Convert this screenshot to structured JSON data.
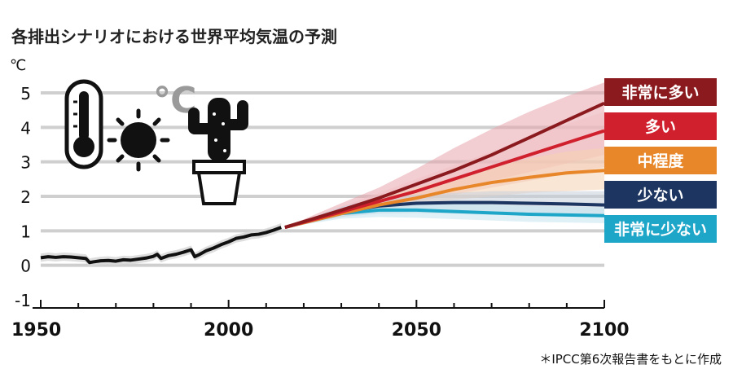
{
  "chart_data": {
    "type": "line",
    "title": "各排出シナリオにおける世界平均気温の予測",
    "ylabel": "℃",
    "xlabel": "",
    "xlim": [
      1950,
      2100
    ],
    "ylim": [
      -1,
      5
    ],
    "yticks": [
      "5",
      "4",
      "3",
      "2",
      "1",
      "0",
      "-1"
    ],
    "ytick_values": [
      5,
      4,
      3,
      2,
      1,
      0,
      -1
    ],
    "xticks": [
      "1950",
      "2000",
      "2050",
      "2100"
    ],
    "xtick_values": [
      1950,
      2000,
      2050,
      2100
    ],
    "grid": true,
    "legend_position": "right",
    "note": "＊IPCC第6次報告書をもとに作成",
    "historical": {
      "color": "#111111",
      "x": [
        1950,
        1952,
        1954,
        1956,
        1958,
        1960,
        1962,
        1963,
        1964,
        1966,
        1968,
        1970,
        1972,
        1974,
        1976,
        1978,
        1980,
        1981,
        1982,
        1984,
        1986,
        1988,
        1990,
        1991,
        1992,
        1994,
        1996,
        1998,
        2000,
        2002,
        2004,
        2006,
        2008,
        2010,
        2012,
        2014
      ],
      "y": [
        0.22,
        0.25,
        0.23,
        0.25,
        0.24,
        0.22,
        0.2,
        0.08,
        0.1,
        0.13,
        0.14,
        0.12,
        0.16,
        0.15,
        0.18,
        0.21,
        0.26,
        0.32,
        0.2,
        0.28,
        0.32,
        0.38,
        0.45,
        0.25,
        0.3,
        0.42,
        0.5,
        0.6,
        0.68,
        0.78,
        0.82,
        0.88,
        0.9,
        0.95,
        1.02,
        1.1
      ]
    },
    "series": [
      {
        "name": "非常に多い",
        "color": "#8b1a1f",
        "band": "#e8a4ac",
        "x": [
          2015,
          2030,
          2040,
          2050,
          2060,
          2070,
          2080,
          2090,
          2100
        ],
        "y": [
          1.1,
          1.6,
          1.95,
          2.35,
          2.75,
          3.2,
          3.7,
          4.2,
          4.7
        ],
        "lower": [
          1.1,
          1.45,
          1.7,
          1.95,
          2.2,
          2.45,
          2.7,
          2.95,
          3.2
        ],
        "upper": [
          1.1,
          1.8,
          2.25,
          2.8,
          3.4,
          3.95,
          4.45,
          4.9,
          5.3
        ]
      },
      {
        "name": "多い",
        "color": "#d0202e",
        "band": "#f0c3c8",
        "x": [
          2015,
          2030,
          2040,
          2050,
          2060,
          2070,
          2080,
          2090,
          2100
        ],
        "y": [
          1.1,
          1.55,
          1.85,
          2.15,
          2.5,
          2.85,
          3.2,
          3.55,
          3.9
        ],
        "lower": [
          1.1,
          1.45,
          1.65,
          1.85,
          2.05,
          2.25,
          2.45,
          2.65,
          2.85
        ],
        "upper": [
          1.1,
          1.7,
          2.1,
          2.5,
          2.9,
          3.3,
          3.7,
          4.1,
          4.45
        ]
      },
      {
        "name": "中程度",
        "color": "#e8872a",
        "band": "#f6d2b0",
        "x": [
          2015,
          2030,
          2040,
          2050,
          2060,
          2070,
          2080,
          2090,
          2100
        ],
        "y": [
          1.1,
          1.5,
          1.75,
          1.95,
          2.2,
          2.4,
          2.55,
          2.68,
          2.75
        ],
        "lower": [
          1.1,
          1.4,
          1.6,
          1.75,
          1.9,
          2.0,
          2.1,
          2.15,
          2.2
        ],
        "upper": [
          1.1,
          1.62,
          1.95,
          2.25,
          2.55,
          2.85,
          3.1,
          3.3,
          3.4
        ]
      },
      {
        "name": "少ない",
        "color": "#1c3561",
        "band": "#c7cfdd",
        "x": [
          2015,
          2030,
          2040,
          2050,
          2060,
          2070,
          2080,
          2090,
          2100
        ],
        "y": [
          1.1,
          1.55,
          1.72,
          1.8,
          1.82,
          1.82,
          1.8,
          1.78,
          1.75
        ],
        "lower": [
          1.1,
          1.4,
          1.5,
          1.52,
          1.5,
          1.48,
          1.45,
          1.42,
          1.4
        ],
        "upper": [
          1.1,
          1.7,
          1.95,
          2.05,
          2.1,
          2.15,
          2.15,
          2.15,
          2.15
        ]
      },
      {
        "name": "非常に少ない",
        "color": "#1ea6c9",
        "band": "#c4e6f0",
        "x": [
          2015,
          2030,
          2040,
          2050,
          2060,
          2070,
          2080,
          2090,
          2100
        ],
        "y": [
          1.1,
          1.5,
          1.6,
          1.6,
          1.56,
          1.52,
          1.48,
          1.46,
          1.44
        ],
        "lower": [
          1.1,
          1.35,
          1.4,
          1.38,
          1.34,
          1.3,
          1.26,
          1.24,
          1.22
        ],
        "upper": [
          1.1,
          1.65,
          1.8,
          1.82,
          1.8,
          1.76,
          1.72,
          1.7,
          1.68
        ]
      }
    ]
  },
  "illustration": {
    "celsius_symbol": "℃",
    "icons": [
      "thermometer-icon",
      "sun-icon",
      "cactus-icon"
    ],
    "celsius_color": "#9a9a9a"
  }
}
